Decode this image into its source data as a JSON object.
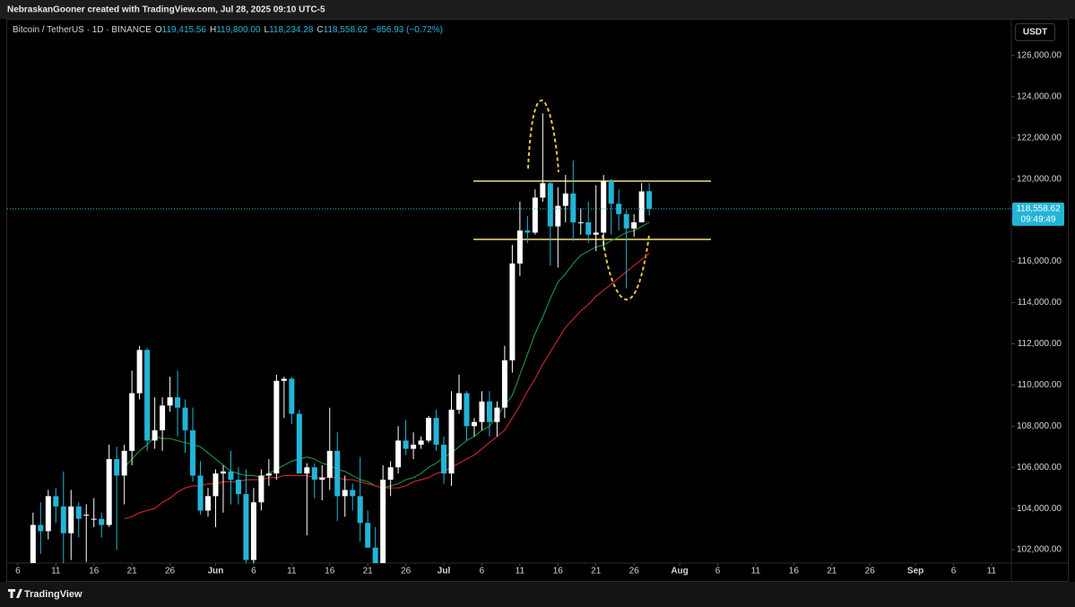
{
  "header": {
    "credit": "NebraskanGooner created with TradingView.com, Jul 28, 2025 09:10 UTC-5"
  },
  "footer": {
    "brand": "TradingView"
  },
  "chart_data": {
    "type": "candlestick",
    "symbol": "Bitcoin / TetherUS · 1D · BINANCE",
    "legend": [
      {
        "label": "O",
        "value": "119,415.56"
      },
      {
        "label": "H",
        "value": "119,800.00"
      },
      {
        "label": "L",
        "value": "118,234.28"
      },
      {
        "label": "C",
        "value": "118,558.62"
      }
    ],
    "change": "−856.93 (−0.72%)",
    "currency": "USDT",
    "last_price_label": "118,558.62",
    "countdown": "09:49:49",
    "up_color": "#ffffff",
    "down_color": "#22b5d6",
    "xlim": [
      -3.4,
      128.6
    ],
    "xticks": [
      {
        "value": -2,
        "label": "6"
      },
      {
        "value": 3,
        "label": "11"
      },
      {
        "value": 8,
        "label": "16"
      },
      {
        "value": 13,
        "label": "21"
      },
      {
        "value": 18,
        "label": "26"
      },
      {
        "value": 24,
        "label": "Jun"
      },
      {
        "value": 29,
        "label": "6"
      },
      {
        "value": 34,
        "label": "11"
      },
      {
        "value": 39,
        "label": "16"
      },
      {
        "value": 44,
        "label": "21"
      },
      {
        "value": 49,
        "label": "26"
      },
      {
        "value": 54,
        "label": "Jul"
      },
      {
        "value": 59,
        "label": "6"
      },
      {
        "value": 64,
        "label": "11"
      },
      {
        "value": 69,
        "label": "16"
      },
      {
        "value": 74,
        "label": "21"
      },
      {
        "value": 79,
        "label": "26"
      },
      {
        "value": 85,
        "label": "Aug"
      },
      {
        "value": 90,
        "label": "6"
      },
      {
        "value": 95,
        "label": "11"
      },
      {
        "value": 100,
        "label": "16"
      },
      {
        "value": 105,
        "label": "21"
      },
      {
        "value": 110,
        "label": "26"
      },
      {
        "value": 116,
        "label": "Sep"
      },
      {
        "value": 121,
        "label": "6"
      },
      {
        "value": 126,
        "label": "11"
      }
    ],
    "ylim": [
      101350,
      127740
    ],
    "yticks": [
      {
        "value": 102000,
        "label": "102,000.00"
      },
      {
        "value": 104000,
        "label": "104,000.00"
      },
      {
        "value": 106000,
        "label": "106,000.00"
      },
      {
        "value": 108000,
        "label": "108,000.00"
      },
      {
        "value": 110000,
        "label": "110,000.00"
      },
      {
        "value": 112000,
        "label": "112,000.00"
      },
      {
        "value": 114000,
        "label": "114,000.00"
      },
      {
        "value": 116000,
        "label": "116,000.00"
      },
      {
        "value": 118000,
        "label": "118,000.00"
      },
      {
        "value": 120000,
        "label": "120,000.00"
      },
      {
        "value": 122000,
        "label": "122,000.00"
      },
      {
        "value": 124000,
        "label": "124,000.00"
      },
      {
        "value": 126000,
        "label": "126,000.00"
      }
    ],
    "open": [
      99000,
      103200,
      102900,
      104600,
      104100,
      102800,
      104100,
      103700,
      103500,
      103500,
      103200,
      106400,
      105600,
      106800,
      109600,
      111700,
      107300,
      107800,
      109000,
      109400,
      108900,
      107800,
      105600,
      103900,
      104600,
      105700,
      105800,
      105400,
      104700,
      101500,
      104300,
      105600,
      105700,
      110200,
      110300,
      108600,
      105700,
      106000,
      105400,
      105500,
      106800,
      104600,
      104900,
      104600,
      103300,
      102100,
      101000,
      105400,
      106000,
      107300,
      106900,
      107100,
      107300,
      108400,
      107100,
      105700,
      108800,
      109600,
      108000,
      108200,
      109200,
      108200,
      108900,
      111200,
      115900,
      117500,
      117400,
      119100,
      119800,
      117700,
      118700,
      119300,
      117900,
      117900,
      117300,
      117400,
      119900,
      118800,
      118300,
      117600,
      117900,
      119415.56
    ],
    "high": [
      103800,
      104300,
      104900,
      105000,
      105800,
      104900,
      104300,
      104200,
      104500,
      103800,
      107100,
      107000,
      107100,
      110700,
      111900,
      111800,
      109400,
      109400,
      110400,
      110700,
      109300,
      108900,
      106300,
      105000,
      105900,
      106100,
      106800,
      106000,
      105900,
      105000,
      105900,
      106400,
      110500,
      110400,
      110400,
      108800,
      106200,
      106200,
      106100,
      108900,
      107700,
      105600,
      105200,
      106500,
      103900,
      103100,
      106100,
      106300,
      108000,
      108300,
      107700,
      107500,
      108500,
      108800,
      107500,
      109700,
      110500,
      109700,
      108400,
      109700,
      109700,
      109200,
      111900,
      116800,
      118900,
      118200,
      119500,
      123200,
      119900,
      119600,
      120200,
      120900,
      118600,
      118900,
      119700,
      120200,
      120000,
      119500,
      118500,
      118300,
      119800,
      119800
    ],
    "low": [
      98000,
      101800,
      102500,
      103300,
      100800,
      101500,
      102600,
      101400,
      103100,
      102600,
      103100,
      102000,
      104200,
      106100,
      109300,
      106800,
      106900,
      106800,
      108700,
      107500,
      106700,
      105300,
      103700,
      103600,
      103100,
      103800,
      104200,
      104200,
      100400,
      101100,
      103900,
      105100,
      105400,
      108400,
      108100,
      105700,
      102700,
      104500,
      104400,
      104900,
      103400,
      103600,
      103900,
      102400,
      102100,
      98200,
      99600,
      104600,
      105700,
      106600,
      106400,
      106900,
      107200,
      106800,
      105200,
      105100,
      108600,
      107300,
      107500,
      107800,
      107500,
      107500,
      108400,
      110600,
      115300,
      116900,
      117300,
      118900,
      115800,
      115700,
      117900,
      117000,
      117300,
      116900,
      116500,
      116600,
      117300,
      117500,
      114700,
      117200,
      117900,
      118234.28
    ],
    "close": [
      103200,
      102900,
      104600,
      104100,
      102800,
      104100,
      103500,
      103700,
      103500,
      103200,
      106400,
      105600,
      106800,
      109600,
      111700,
      107300,
      107800,
      109000,
      109400,
      108900,
      107800,
      105600,
      103900,
      104600,
      105700,
      105800,
      105400,
      104700,
      101500,
      104300,
      105600,
      105700,
      110200,
      110300,
      108600,
      105700,
      106000,
      105400,
      105500,
      106800,
      104600,
      104900,
      104600,
      103300,
      102100,
      101000,
      105400,
      106000,
      107300,
      106900,
      107100,
      107300,
      108400,
      107100,
      105700,
      108800,
      109600,
      108000,
      108200,
      109200,
      108200,
      108900,
      111200,
      115900,
      117500,
      117400,
      119100,
      119800,
      117700,
      118700,
      119300,
      117900,
      117900,
      117300,
      117400,
      119900,
      118800,
      118300,
      117600,
      117900,
      119400,
      118558.62
    ],
    "ma": [
      {
        "color": "#1f8a3a",
        "values": [
          null,
          null,
          null,
          null,
          null,
          null,
          null,
          null,
          null,
          null,
          null,
          null,
          106000,
          106400,
          106800,
          107100,
          107500,
          107400,
          107400,
          107300,
          107200,
          107100,
          107000,
          106700,
          106400,
          106100,
          105800,
          105700,
          105600,
          105600,
          105500,
          105700,
          105900,
          106100,
          106300,
          106400,
          106500,
          106400,
          106200,
          106100,
          105900,
          105800,
          105600,
          105400,
          105300,
          105100,
          105000,
          105100,
          105200,
          105400,
          105500,
          105700,
          106000,
          106200,
          106500,
          106700,
          107000,
          107300,
          107500,
          107800,
          108000,
          108500,
          109000,
          109500,
          110500,
          111500,
          112500,
          113300,
          114200,
          115000,
          115400,
          115900,
          116300,
          116500,
          116700,
          116800,
          117000,
          117200,
          117400,
          117500,
          117700,
          117900
        ]
      },
      {
        "color": "#c0262b",
        "values": [
          null,
          null,
          null,
          null,
          null,
          null,
          null,
          null,
          null,
          null,
          null,
          null,
          103500,
          103600,
          103800,
          103900,
          104000,
          104300,
          104500,
          104800,
          105000,
          105100,
          105100,
          105200,
          105200,
          105300,
          105300,
          105300,
          105400,
          105400,
          105400,
          105500,
          105500,
          105600,
          105600,
          105600,
          105600,
          105500,
          105500,
          105500,
          105500,
          105400,
          105400,
          105300,
          105200,
          105100,
          105000,
          105000,
          105000,
          105100,
          105300,
          105400,
          105500,
          105700,
          105800,
          106000,
          106200,
          106400,
          106600,
          106900,
          107200,
          107500,
          107800,
          108400,
          109000,
          109700,
          110300,
          111000,
          111600,
          112200,
          112800,
          113200,
          113600,
          113900,
          114300,
          114600,
          114900,
          115200,
          115500,
          115800,
          116100,
          116400
        ]
      }
    ]
  }
}
